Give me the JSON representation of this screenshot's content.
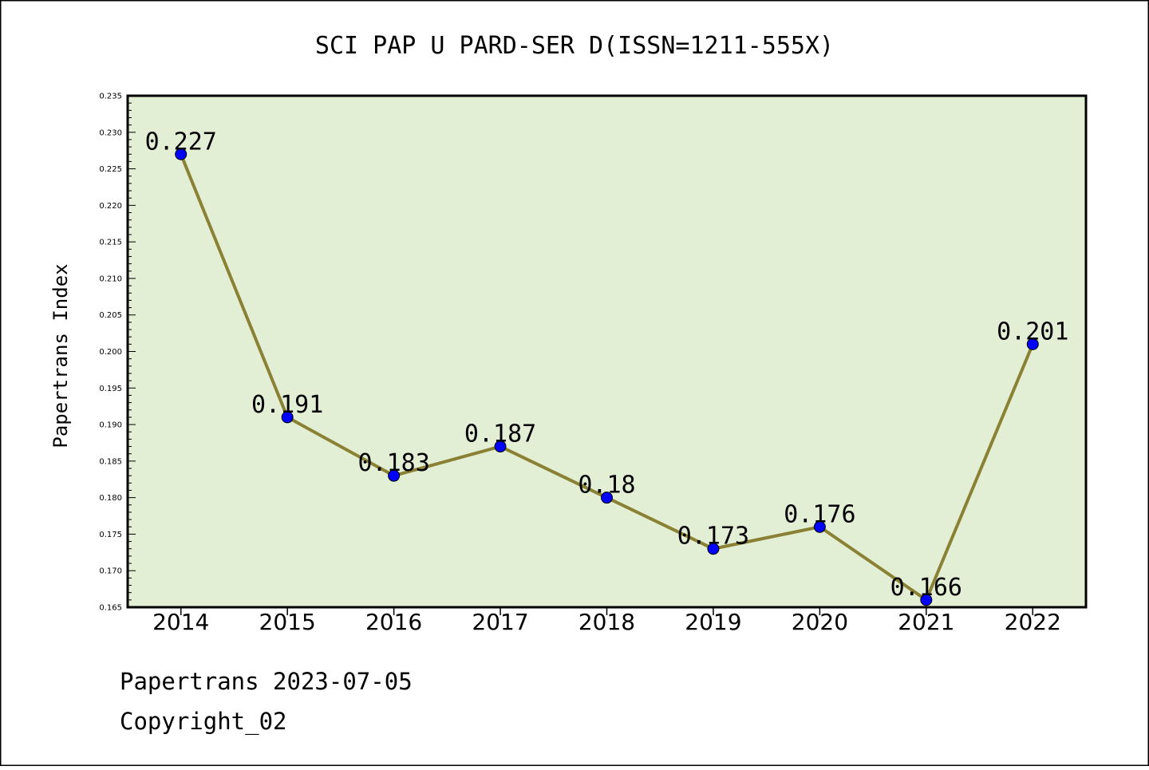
{
  "chart_data": {
    "type": "line",
    "title": "SCI PAP U PARD-SER D(ISSN=1211-555X)",
    "xlabel": "",
    "ylabel": "Papertrans Index",
    "categories": [
      "2014",
      "2015",
      "2016",
      "2017",
      "2018",
      "2019",
      "2020",
      "2021",
      "2022"
    ],
    "series": [
      {
        "values": [
          0.227,
          0.191,
          0.183,
          0.187,
          0.18,
          0.173,
          0.176,
          0.166,
          0.201
        ],
        "labels": [
          "0.227",
          "0.191",
          "0.183",
          "0.187",
          "0.18",
          "0.173",
          "0.176",
          "0.166",
          "0.201"
        ]
      }
    ],
    "ylim": [
      0.165,
      0.235
    ],
    "yticks": [
      "0.165",
      "0.170",
      "0.175",
      "0.180",
      "0.185",
      "0.190",
      "0.195",
      "0.200",
      "0.205",
      "0.210",
      "0.215",
      "0.220",
      "0.225",
      "0.230",
      "0.235"
    ],
    "grid": false,
    "legend": "none",
    "colors": {
      "plot_background": "#e2efd5",
      "line": "#8b8135",
      "marker": "#0000ff"
    }
  },
  "footer": {
    "line1": "Papertrans 2023-07-05",
    "line2": "Copyright_02"
  }
}
